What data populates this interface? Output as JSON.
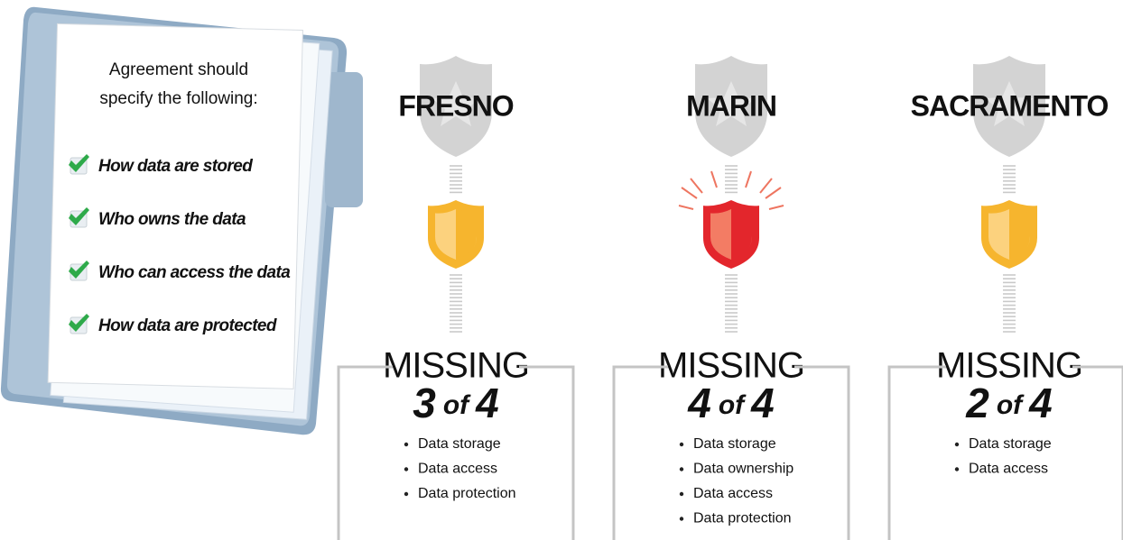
{
  "checklist": {
    "intro": [
      "Agreement should",
      "specify the following:"
    ],
    "items": [
      "How data are stored",
      "Who owns the data",
      "Who can access the data",
      "How data are protected"
    ]
  },
  "cities": [
    {
      "name": "FRESNO",
      "badge_color": "#f6b52e",
      "badge_light": "#fcd27e",
      "missing_label": "MISSING",
      "count": "3",
      "separator": "of",
      "total": "4",
      "items": [
        "Data storage",
        "Data access",
        "Data protection"
      ]
    },
    {
      "name": "MARIN",
      "badge_color": "#e3262c",
      "badge_light": "#f37c64",
      "missing_label": "MISSING",
      "count": "4",
      "separator": "of",
      "total": "4",
      "items": [
        "Data storage",
        "Data ownership",
        "Data access",
        "Data protection"
      ]
    },
    {
      "name": "SACRAMENTO",
      "badge_color": "#f6b52e",
      "badge_light": "#fcd27e",
      "missing_label": "MISSING",
      "count": "2",
      "separator": "of",
      "total": "4",
      "items": [
        "Data storage",
        "Data access"
      ]
    }
  ]
}
